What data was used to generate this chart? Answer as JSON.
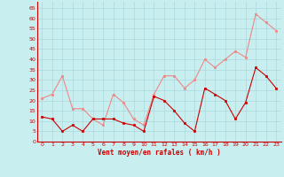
{
  "x": [
    0,
    1,
    2,
    3,
    4,
    5,
    6,
    7,
    8,
    9,
    10,
    11,
    12,
    13,
    14,
    15,
    16,
    17,
    18,
    19,
    20,
    21,
    22,
    23
  ],
  "wind_mean": [
    12,
    11,
    5,
    8,
    5,
    11,
    11,
    11,
    9,
    8,
    5,
    22,
    20,
    15,
    9,
    5,
    26,
    23,
    20,
    11,
    19,
    36,
    32,
    26
  ],
  "wind_gust": [
    21,
    23,
    32,
    16,
    16,
    11,
    8,
    23,
    19,
    11,
    8,
    23,
    32,
    32,
    26,
    30,
    40,
    36,
    40,
    44,
    41,
    62,
    58,
    54
  ],
  "mean_color": "#cc0000",
  "gust_color": "#ee8888",
  "bg_color": "#c8eef0",
  "grid_color": "#aad8dc",
  "xlabel": "Vent moyen/en rafales ( km/h )",
  "xlabel_color": "#cc0000",
  "yticks": [
    0,
    5,
    10,
    15,
    20,
    25,
    30,
    35,
    40,
    45,
    50,
    55,
    60,
    65
  ],
  "xticks": [
    0,
    1,
    2,
    3,
    4,
    5,
    6,
    7,
    8,
    9,
    10,
    11,
    12,
    13,
    14,
    15,
    16,
    17,
    18,
    19,
    20,
    21,
    22,
    23
  ],
  "ylim": [
    0,
    68
  ],
  "xlim": [
    -0.5,
    23.5
  ],
  "tick_color": "#cc0000",
  "spine_color": "#cc0000"
}
